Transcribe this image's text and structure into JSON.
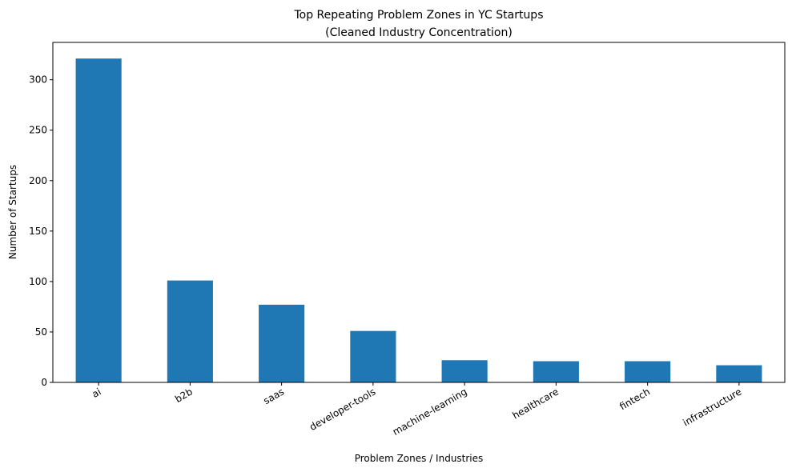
{
  "chart_data": {
    "type": "bar",
    "title": "Top Repeating Problem Zones in YC Startups",
    "subtitle": "(Cleaned Industry Concentration)",
    "xlabel": "Problem Zones / Industries",
    "ylabel": "Number of Startups",
    "categories": [
      "ai",
      "b2b",
      "saas",
      "developer-tools",
      "machine-learning",
      "healthcare",
      "fintech",
      "infrastructure"
    ],
    "values": [
      321,
      101,
      77,
      51,
      22,
      21,
      21,
      17
    ],
    "ylim": [
      0,
      337
    ],
    "yticks": [
      0,
      50,
      100,
      150,
      200,
      250,
      300
    ],
    "grid": false,
    "bar_color": "#1f77b4"
  }
}
